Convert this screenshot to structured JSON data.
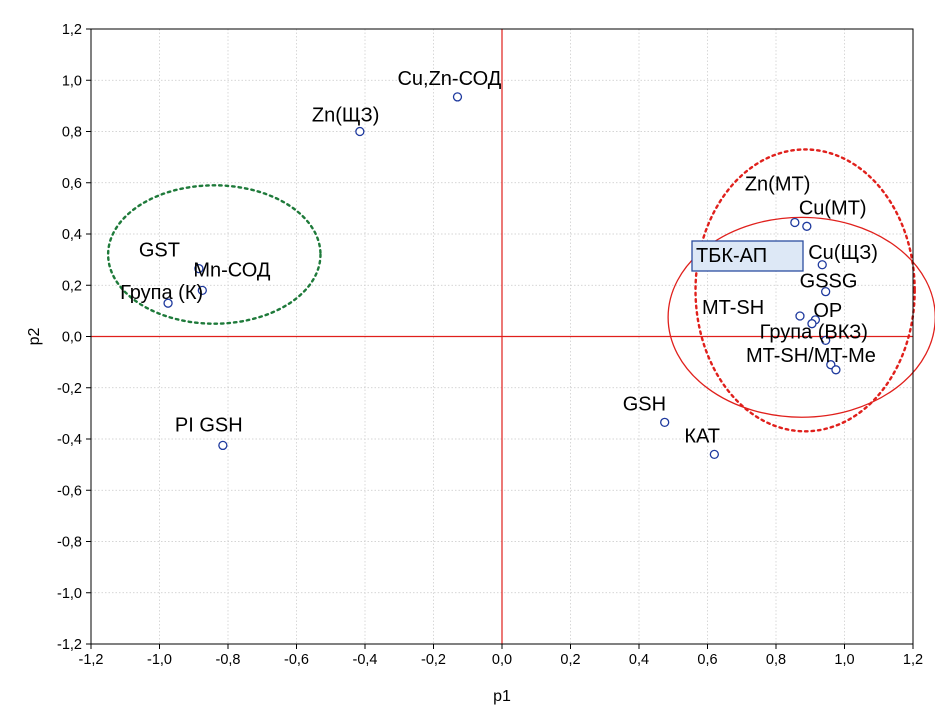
{
  "chart_data": {
    "type": "scatter",
    "xlabel": "p1",
    "ylabel": "p2",
    "xlim": [
      -1.2,
      1.2
    ],
    "ylim": [
      -1.2,
      1.2
    ],
    "xticks": [
      "-1,2",
      "-1,0",
      "-0,8",
      "-0,6",
      "-0,4",
      "-0,2",
      "0,0",
      "0,2",
      "0,4",
      "0,6",
      "0,8",
      "1,0",
      "1,2"
    ],
    "yticks": [
      "1,2",
      "1,0",
      "0,8",
      "0,6",
      "0,4",
      "0,2",
      "0,0",
      "-0,2",
      "-0,4",
      "-0,6",
      "-0,8",
      "-1,0",
      "-1,2"
    ],
    "grid": true,
    "reference_lines": {
      "x": 0,
      "y": 0,
      "color": "#e0201c"
    },
    "marker_color": "#1f3a9e",
    "points": [
      {
        "label": "Cu,Zn-СОД",
        "x": -0.13,
        "y": 0.935
      },
      {
        "label": "Zn(ЩЗ)",
        "x": -0.415,
        "y": 0.8
      },
      {
        "label": "GST",
        "x": -0.885,
        "y": 0.265
      },
      {
        "label": "Mn-СОД",
        "x": -0.875,
        "y": 0.18
      },
      {
        "label": "Група (К)",
        "x": -0.975,
        "y": 0.13
      },
      {
        "label": "PI GSH",
        "x": -0.815,
        "y": -0.425
      },
      {
        "label": "Zn(МТ)",
        "x": 0.855,
        "y": 0.445
      },
      {
        "label": "Cu(МТ)",
        "x": 0.89,
        "y": 0.43
      },
      {
        "label": "Cu(ЩЗ)",
        "x": 0.935,
        "y": 0.28
      },
      {
        "label": "GSSG",
        "x": 0.945,
        "y": 0.175
      },
      {
        "label": "MT-SH",
        "x": 0.87,
        "y": 0.08
      },
      {
        "label": "OP",
        "x": 0.915,
        "y": 0.065
      },
      {
        "label": "",
        "x": 0.905,
        "y": 0.05
      },
      {
        "label": "Група (ВКЗ)",
        "x": 0.945,
        "y": -0.015
      },
      {
        "label": "",
        "x": 0.96,
        "y": -0.11
      },
      {
        "label": "MT-SH/MT-Me",
        "x": 0.975,
        "y": -0.13
      },
      {
        "label": "GSH",
        "x": 0.475,
        "y": -0.335
      },
      {
        "label": "КАТ",
        "x": 0.62,
        "y": -0.46
      }
    ],
    "boxed_label": "ТБК-АП",
    "boxed_label_color": "#2c4fa0",
    "ellipses": [
      {
        "cx": -0.84,
        "cy": 0.32,
        "rx": 0.31,
        "ry": 0.27,
        "style": "dotted",
        "color": "#1e7a3a"
      },
      {
        "cx": 0.885,
        "cy": 0.18,
        "rx": 0.32,
        "ry": 0.55,
        "style": "dotted",
        "color": "#e0201c"
      },
      {
        "cx": 0.875,
        "cy": 0.075,
        "rx": 0.39,
        "ry": 0.39,
        "style": "solid",
        "color": "#e0201c"
      }
    ]
  }
}
